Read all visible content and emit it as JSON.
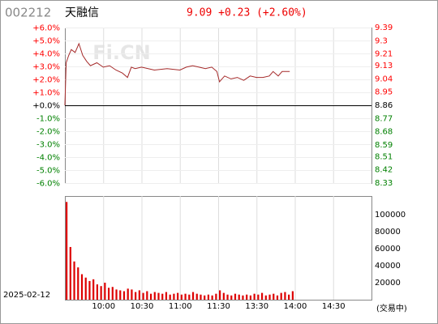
{
  "header": {
    "code": "002212",
    "name": "天融信",
    "quote": "9.09 +0.23 (+2.60%)",
    "watermark": "Fi.CN",
    "date": "2025-02-12",
    "status": "(交易中)"
  },
  "chart_data": [
    {
      "type": "line",
      "up_color": "#ff0000",
      "zero_color": "#000000",
      "down_color": "#008000",
      "xlim": [
        0,
        240
      ],
      "ylim": [
        -6,
        6
      ],
      "yticks": [
        {
          "value": 6,
          "label": "+6.0%"
        },
        {
          "value": 5,
          "label": "+5.0%"
        },
        {
          "value": 4,
          "label": "+4.0%"
        },
        {
          "value": 3,
          "label": "+3.0%"
        },
        {
          "value": 2,
          "label": "+2.0%"
        },
        {
          "value": 1,
          "label": "+1.0%"
        },
        {
          "value": 0,
          "label": "+0.0%"
        },
        {
          "value": -1,
          "label": "-1.0%"
        },
        {
          "value": -2,
          "label": "-2.0%"
        },
        {
          "value": -3,
          "label": "-3.0%"
        },
        {
          "value": -4,
          "label": "-4.0%"
        },
        {
          "value": -5,
          "label": "-5.0%"
        },
        {
          "value": -6,
          "label": "-6.0%"
        }
      ],
      "y2lim": [
        8.33,
        9.39
      ],
      "y2ticks": [
        9.39,
        9.3,
        9.21,
        9.13,
        9.04,
        8.95,
        8.86,
        8.77,
        8.68,
        8.59,
        8.51,
        8.42,
        8.33
      ],
      "x": [
        0,
        1,
        3,
        5,
        8,
        11,
        14,
        17,
        20,
        25,
        30,
        35,
        40,
        45,
        49,
        52,
        55,
        60,
        70,
        80,
        90,
        95,
        100,
        105,
        110,
        115,
        119,
        121,
        125,
        130,
        135,
        140,
        145,
        150,
        155,
        160,
        163,
        167,
        170,
        176
      ],
      "series": [
        {
          "color": "#a52a2a",
          "axis": "y2",
          "values": [
            8.86,
            9.15,
            9.2,
            9.24,
            9.22,
            9.28,
            9.2,
            9.16,
            9.13,
            9.15,
            9.12,
            9.13,
            9.1,
            9.08,
            9.05,
            9.12,
            9.11,
            9.12,
            9.1,
            9.11,
            9.1,
            9.12,
            9.13,
            9.12,
            9.11,
            9.12,
            9.09,
            9.02,
            9.06,
            9.04,
            9.05,
            9.03,
            9.06,
            9.05,
            9.05,
            9.06,
            9.09,
            9.06,
            9.09,
            9.09
          ]
        }
      ]
    },
    {
      "type": "bar",
      "color": "#dd0000",
      "xlim": [
        0,
        240
      ],
      "xticks": [
        {
          "value": 30,
          "label": "10:00"
        },
        {
          "value": 60,
          "label": "10:30"
        },
        {
          "value": 90,
          "label": "11:00"
        },
        {
          "value": 120,
          "label": "11:30"
        },
        {
          "value": 150,
          "label": "13:30"
        },
        {
          "value": 180,
          "label": "14:00"
        },
        {
          "value": 210,
          "label": "14:30"
        }
      ],
      "ylim": [
        0,
        122000
      ],
      "yticks": [
        20000,
        40000,
        60000,
        80000,
        100000
      ],
      "x": [
        0,
        3,
        6,
        9,
        12,
        15,
        18,
        21,
        24,
        27,
        30,
        33,
        36,
        39,
        42,
        45,
        48,
        51,
        54,
        57,
        60,
        63,
        66,
        69,
        72,
        75,
        78,
        81,
        84,
        87,
        90,
        93,
        96,
        99,
        102,
        105,
        108,
        111,
        114,
        117,
        120,
        123,
        126,
        129,
        132,
        135,
        138,
        141,
        144,
        147,
        150,
        153,
        156,
        159,
        162,
        165,
        168,
        171,
        174,
        177
      ],
      "values": [
        115000,
        62000,
        45000,
        38000,
        30000,
        26000,
        22000,
        24000,
        18000,
        16000,
        20000,
        14000,
        15000,
        12000,
        11000,
        10000,
        13000,
        12000,
        9000,
        11000,
        8000,
        10000,
        7000,
        9000,
        8000,
        7000,
        9000,
        6000,
        7000,
        8000,
        6000,
        7000,
        6000,
        9000,
        7000,
        6000,
        5000,
        6000,
        5000,
        7000,
        11000,
        8000,
        6000,
        5000,
        7000,
        6000,
        5000,
        6000,
        5000,
        7000,
        6000,
        8000,
        5000,
        6000,
        7000,
        5000,
        8000,
        9000,
        6000,
        10000
      ]
    }
  ]
}
